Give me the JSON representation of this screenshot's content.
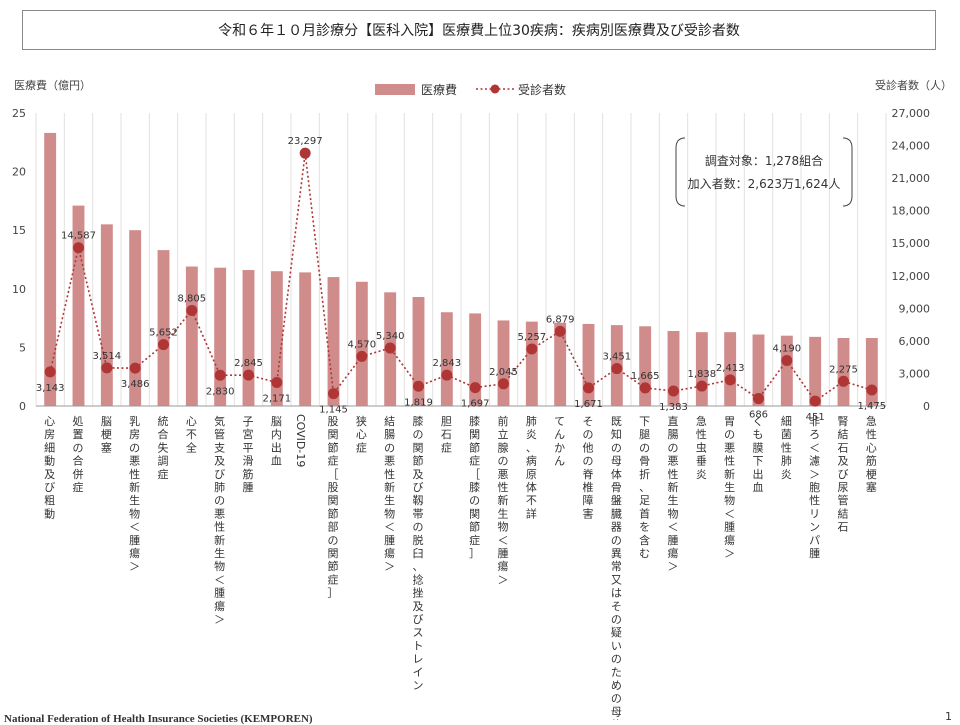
{
  "title": "令和６年１０月診療分【医科入院】医療費上位30疾病：疾病別医療費及び受診者数",
  "footer": "National Federation of Health Insurance Societies (KEMPOREN)",
  "page_mark": "1",
  "chart_data": {
    "type": "bar+line",
    "title": "令和６年１０月診療分【医科入院】医療費上位30疾病：疾病別医療費及び受診者数",
    "ylabel_left": "医療費（億円）",
    "ylabel_right": "受診者数（人）",
    "ylim_left": [
      0,
      25
    ],
    "ylim_right": [
      0,
      27000
    ],
    "yticks_left": [
      "0",
      "5",
      "10",
      "15",
      "20",
      "25"
    ],
    "yticks_right": [
      "0",
      "3,000",
      "6,000",
      "9,000",
      "12,000",
      "15,000",
      "18,000",
      "21,000",
      "24,000",
      "27,000"
    ],
    "legend": {
      "bar": "医療費",
      "line": "受診者数",
      "position": "top-center"
    },
    "annotation": {
      "line1": "調査対象：1,278組合",
      "line2": "加入者数：2,623万1,624人"
    },
    "categories": [
      "心房細動及び粗動",
      "処置の合併症",
      "脳梗塞",
      "乳房の悪性新生物＜腫瘍＞",
      "統合失調症",
      "心不全",
      "気管支及び肺の悪性新生物＜腫瘍＞",
      "子宮平滑筋腫",
      "脳内出血",
      "COVID-19",
      "股関節症［股関節部の関節症］",
      "狭心症",
      "結腸の悪性新生物＜腫瘍＞",
      "膝の関節及び靱帯の脱臼、捻挫及びストレイン",
      "胆石症",
      "膝関節症［膝の関節症］",
      "前立腺の悪性新生物＜腫瘍＞",
      "肺炎、病原体不詳",
      "てんかん",
      "その他の脊椎障害",
      "既知の母体骨盤臓器の異常又はその疑いのための母体ケア",
      "下腿の骨折、足首を含む",
      "直腸の悪性新生物＜腫瘍＞",
      "急性虫垂炎",
      "胃の悪性新生物＜腫瘍＞",
      "くも膜下出血",
      "細菌性肺炎",
      "非ろ＜濾＞胞性リンパ腫",
      "腎結石及び尿管結石",
      "急性心筋梗塞"
    ],
    "series": [
      {
        "name": "医療費",
        "type": "bar",
        "axis": "left",
        "color": "#d08b8b",
        "values": [
          23.3,
          17.1,
          15.5,
          15.0,
          13.3,
          11.9,
          11.8,
          11.6,
          11.5,
          11.4,
          11.0,
          10.6,
          9.7,
          9.3,
          8.0,
          7.9,
          7.3,
          7.2,
          7.1,
          7.0,
          6.9,
          6.8,
          6.4,
          6.3,
          6.3,
          6.1,
          6.0,
          5.9,
          5.8,
          5.8
        ]
      },
      {
        "name": "受診者数",
        "type": "line",
        "axis": "right",
        "color": "#b03535",
        "values": [
          3143,
          14587,
          3514,
          3486,
          5652,
          8805,
          2830,
          2845,
          2171,
          23297,
          1145,
          4570,
          5340,
          1819,
          2843,
          1697,
          2045,
          5257,
          6879,
          1671,
          3451,
          1665,
          1383,
          1838,
          2413,
          686,
          4190,
          451,
          2275,
          1475
        ],
        "labels": [
          "3,143",
          "14,587",
          "3,514",
          "3,486",
          "5,652",
          "8,805",
          "2,830",
          "2,845",
          "2,171",
          "23,297",
          "1,145",
          "4,570",
          "5,340",
          "1,819",
          "2,843",
          "1,697",
          "2,045",
          "5,257",
          "6,879",
          "1,671",
          "3,451",
          "1,665",
          "1,383",
          "1,838",
          "2,413",
          "686",
          "4,190",
          "451",
          "2,275",
          "1,475"
        ]
      }
    ]
  }
}
